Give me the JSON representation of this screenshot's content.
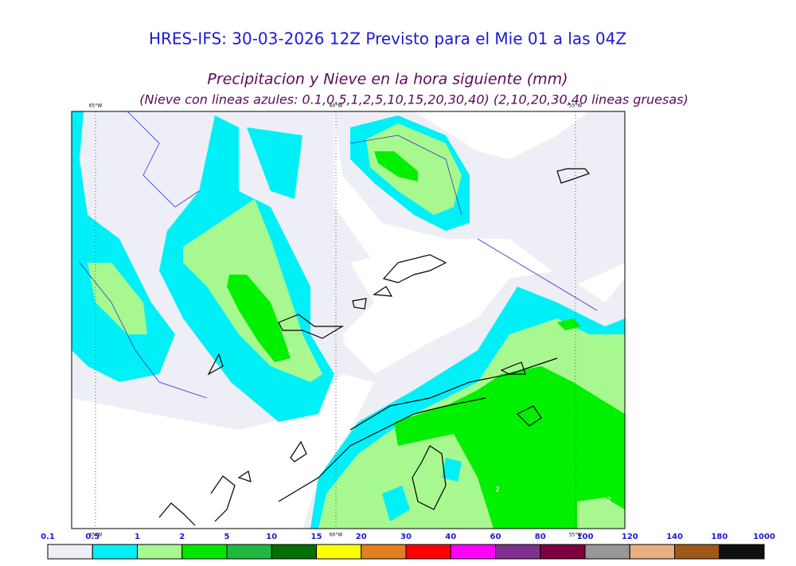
{
  "header": {
    "title": "HRES-IFS: 30-03-2026 12Z Previsto para el Mie 01 a las 04Z",
    "subtitle": "Precipitacion y Nieve en la hora siguiente (mm)",
    "note": "(Nieve con lineas azules: 0.1,0.5,1,2,5,10,15,20,30,40)  (2,10,20,30,40 lineas gruesas)"
  },
  "map": {
    "longitudes": [
      "65°W",
      "60°W",
      "55°W"
    ],
    "contour_labels": [
      "5",
      "2",
      "2"
    ]
  },
  "legend": {
    "levels": [
      0.1,
      0.5,
      1,
      2,
      5,
      10,
      15,
      20,
      30,
      40,
      60,
      80,
      100,
      120,
      140,
      180,
      1000
    ],
    "colors": [
      "#eeeef6",
      "#00f0f8",
      "#a8f890",
      "#00e800",
      "#20b840",
      "#007000",
      "#ffff00",
      "#e08020",
      "#ff0000",
      "#ff00ff",
      "#803090",
      "#800040",
      "#989898",
      "#e8b080",
      "#a05818",
      "#101010"
    ]
  }
}
